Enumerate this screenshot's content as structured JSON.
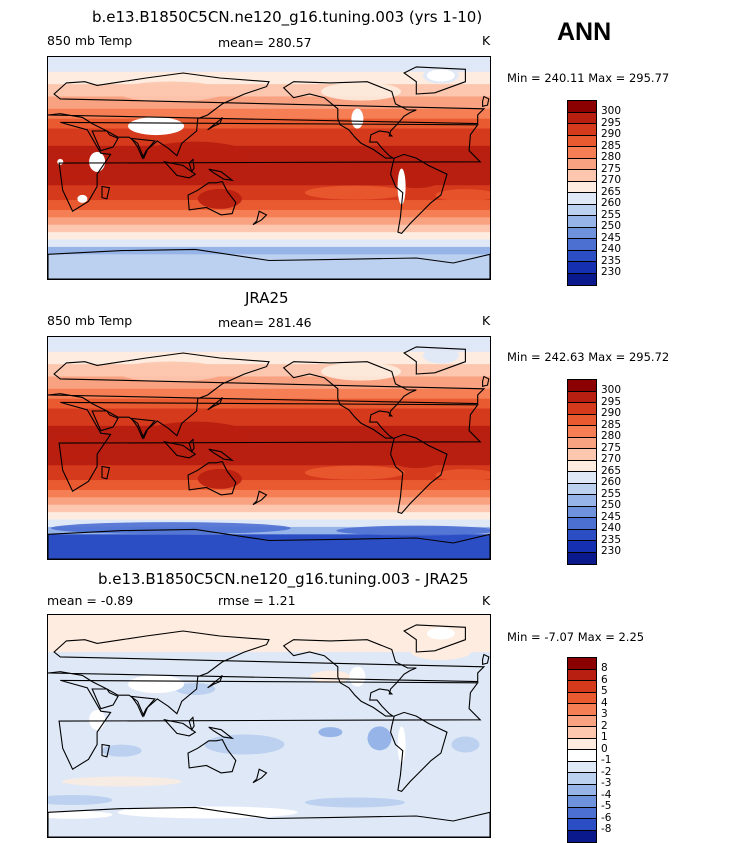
{
  "header": {
    "season": "ANN"
  },
  "panels": [
    {
      "title": "b.e13.B1850C5CN.ne120_g16.tuning.003 (yrs 1-10)",
      "left_label": "850 mb Temp",
      "center_label": "mean= 280.57",
      "unit": "K",
      "minmax": "Min = 240.11 Max = 295.77",
      "type": "model"
    },
    {
      "title": "JRA25",
      "left_label": "850 mb Temp",
      "center_label": "mean= 281.46",
      "unit": "K",
      "minmax": "Min = 242.63 Max = 295.72",
      "type": "obs"
    },
    {
      "title": "b.e13.B1850C5CN.ne120_g16.tuning.003 - JRA25",
      "left_label": "mean =   -0.89",
      "center_label": "rmse =    1.21",
      "unit": "K",
      "minmax": "Min =   -7.07 Max =    2.25",
      "type": "diff"
    }
  ],
  "colorbars": [
    {
      "labels": [
        "300",
        "295",
        "290",
        "285",
        "280",
        "275",
        "270",
        "265",
        "260",
        "255",
        "250",
        "245",
        "240",
        "235",
        "230"
      ],
      "colors": [
        "#8b0000",
        "#b81f10",
        "#d63a1c",
        "#ea5a30",
        "#f57e55",
        "#f9a282",
        "#fcc7ae",
        "#fdecdf",
        "#dfe8f7",
        "#bcd0f0",
        "#96b4e8",
        "#6f92dd",
        "#4c6fd2",
        "#2c4ec4",
        "#1530b0",
        "#0a1a8c"
      ]
    },
    {
      "labels": [
        "300",
        "295",
        "290",
        "285",
        "280",
        "275",
        "270",
        "265",
        "260",
        "255",
        "250",
        "245",
        "240",
        "235",
        "230"
      ],
      "colors": [
        "#8b0000",
        "#b81f10",
        "#d63a1c",
        "#ea5a30",
        "#f57e55",
        "#f9a282",
        "#fcc7ae",
        "#fdecdf",
        "#dfe8f7",
        "#bcd0f0",
        "#96b4e8",
        "#6f92dd",
        "#4c6fd2",
        "#2c4ec4",
        "#1530b0",
        "#0a1a8c"
      ]
    },
    {
      "labels": [
        "8",
        "6",
        "5",
        "4",
        "3",
        "2",
        "1",
        "0",
        "-1",
        "-2",
        "-3",
        "-4",
        "-5",
        "-6",
        "-8"
      ],
      "colors": [
        "#8b0000",
        "#b81f10",
        "#d63a1c",
        "#ea5a30",
        "#f57e55",
        "#f9a282",
        "#fcc7ae",
        "#fdecdf",
        "#ffffff",
        "#dfe8f7",
        "#bcd0f0",
        "#96b4e8",
        "#6f92dd",
        "#4c6fd2",
        "#2c4ec4",
        "#0a1a8c"
      ]
    }
  ]
}
